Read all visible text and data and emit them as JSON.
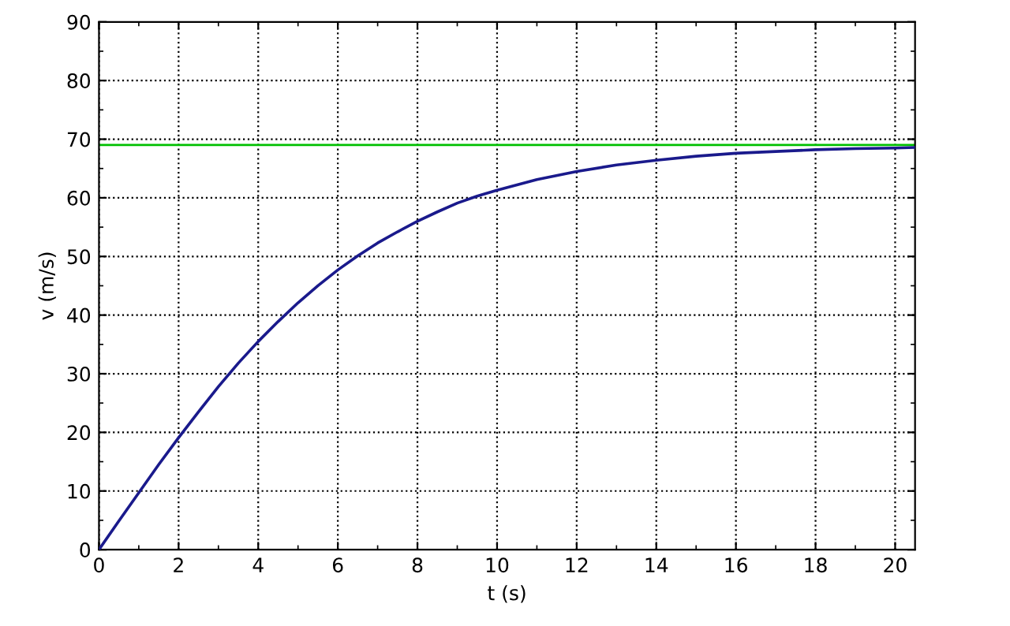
{
  "chart_data": {
    "type": "line",
    "xlabel": "t (s)",
    "ylabel": "v (m/s)",
    "series": [
      {
        "color": "#1a1a8c",
        "x": [
          0,
          0.5,
          1,
          1.5,
          2,
          2.5,
          3,
          3.5,
          4,
          4.5,
          5,
          5.5,
          6,
          6.5,
          7,
          7.5,
          8,
          8.5,
          9,
          9.5,
          10,
          11,
          12,
          13,
          14,
          15,
          16,
          17,
          18,
          19,
          20,
          20.5
        ],
        "values": [
          0,
          4.9,
          9.7,
          14.5,
          19.1,
          23.5,
          27.8,
          31.8,
          35.5,
          38.9,
          42.1,
          45.0,
          47.7,
          50.1,
          52.3,
          54.2,
          56.0,
          57.6,
          59.1,
          60.3,
          61.3,
          63.1,
          64.5,
          65.6,
          66.4,
          67.1,
          67.6,
          67.9,
          68.2,
          68.4,
          68.5,
          68.6
        ]
      }
    ],
    "ref_lines": [
      {
        "axis": "y",
        "value": 69,
        "color": "#00c000",
        "line_style": "solid"
      }
    ],
    "xlim": [
      0,
      20.5
    ],
    "ylim": [
      0,
      90
    ],
    "xticks": [
      0,
      2,
      4,
      6,
      8,
      10,
      12,
      14,
      16,
      18,
      20
    ],
    "yticks": [
      0,
      10,
      20,
      30,
      40,
      50,
      60,
      70,
      80,
      90
    ],
    "grid": true,
    "legend": false,
    "marker": "none",
    "line_style": "solid"
  }
}
